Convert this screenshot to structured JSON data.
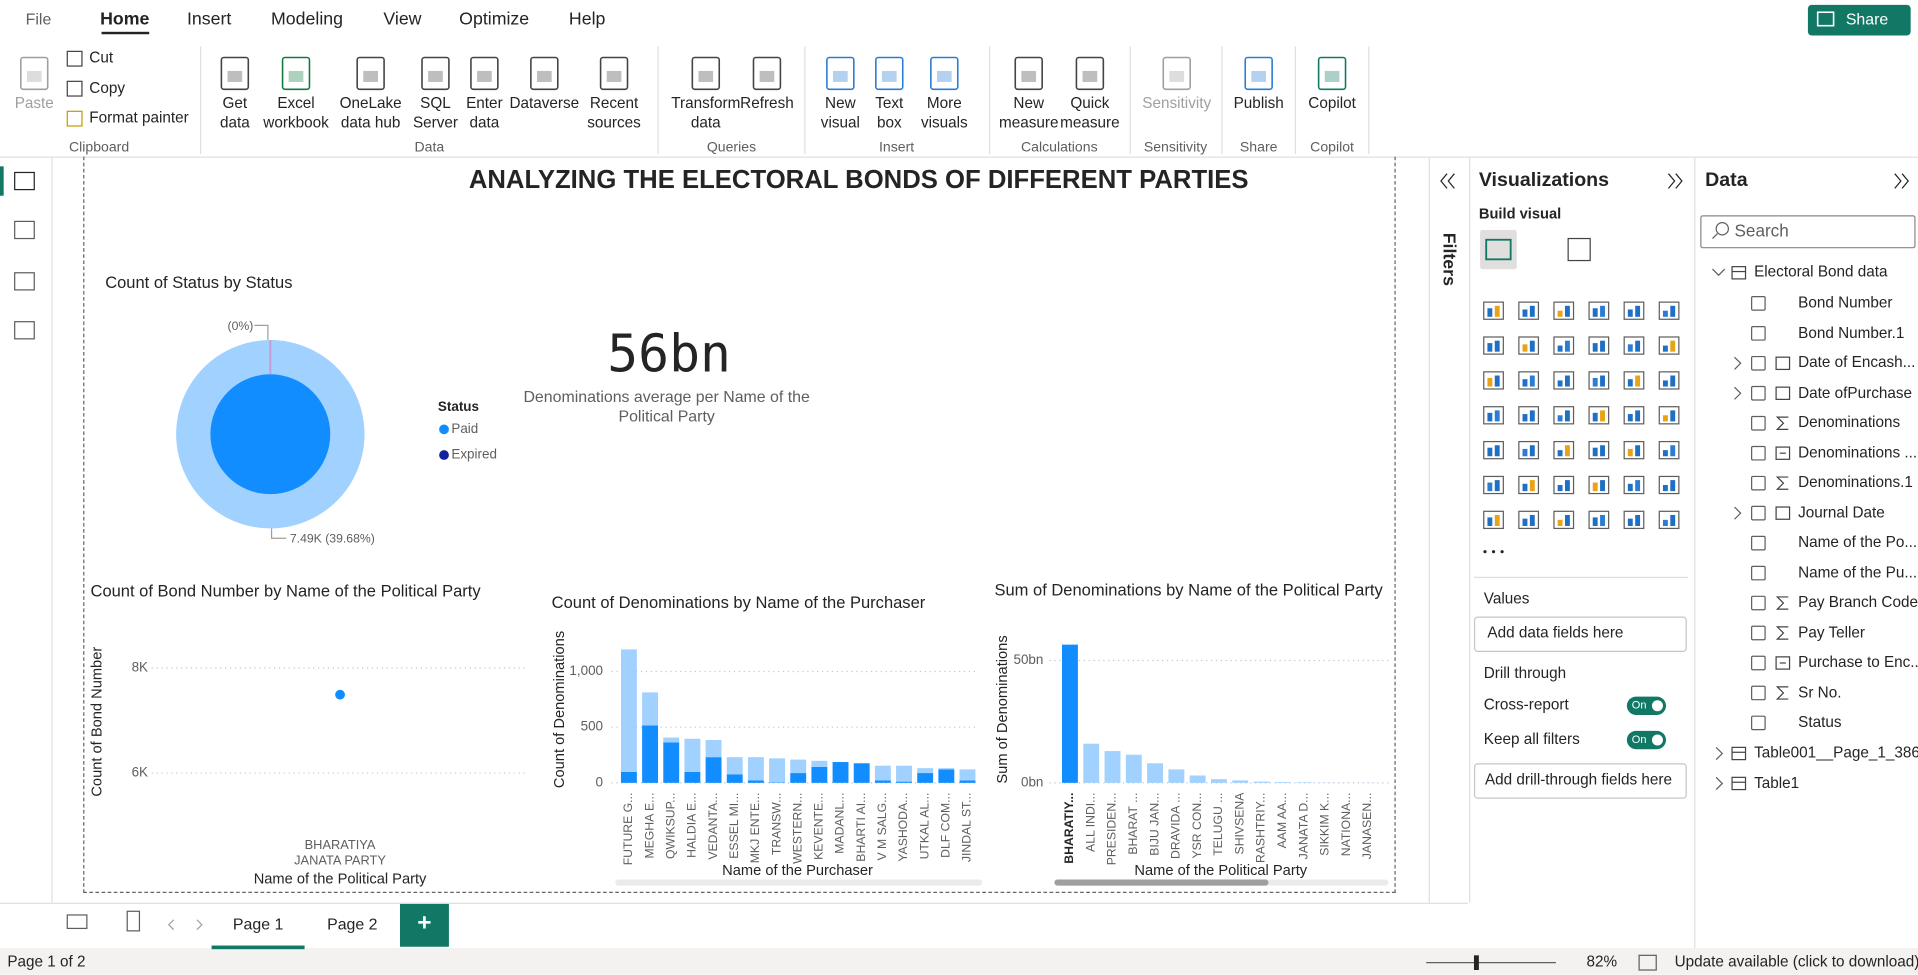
{
  "menu": {
    "file": "File",
    "tabs": [
      "Home",
      "Insert",
      "Modeling",
      "View",
      "Optimize",
      "Help"
    ],
    "share": "Share"
  },
  "ribbon": {
    "groups": [
      {
        "label": "Clipboard",
        "buttons": [
          {
            "lines": [
              "Paste"
            ]
          }
        ],
        "small": [
          "Cut",
          "Copy",
          "Format painter"
        ]
      },
      {
        "label": "Data",
        "buttons": [
          {
            "lines": [
              "Get",
              "data"
            ]
          },
          {
            "lines": [
              "Excel",
              "workbook"
            ]
          },
          {
            "lines": [
              "OneLake",
              "data hub"
            ]
          },
          {
            "lines": [
              "SQL",
              "Server"
            ]
          },
          {
            "lines": [
              "Enter",
              "data"
            ]
          },
          {
            "lines": [
              "Dataverse"
            ]
          },
          {
            "lines": [
              "Recent",
              "sources"
            ]
          }
        ]
      },
      {
        "label": "Queries",
        "buttons": [
          {
            "lines": [
              "Transform",
              "data"
            ]
          },
          {
            "lines": [
              "Refresh"
            ]
          }
        ]
      },
      {
        "label": "Insert",
        "buttons": [
          {
            "lines": [
              "New",
              "visual"
            ]
          },
          {
            "lines": [
              "Text",
              "box"
            ]
          },
          {
            "lines": [
              "More",
              "visuals"
            ]
          }
        ]
      },
      {
        "label": "Calculations",
        "buttons": [
          {
            "lines": [
              "New",
              "measure"
            ]
          },
          {
            "lines": [
              "Quick",
              "measure"
            ]
          }
        ]
      },
      {
        "label": "Sensitivity",
        "buttons": [
          {
            "lines": [
              "Sensitivity"
            ]
          }
        ]
      },
      {
        "label": "Share",
        "buttons": [
          {
            "lines": [
              "Publish"
            ]
          }
        ]
      },
      {
        "label": "Copilot",
        "buttons": [
          {
            "lines": [
              "Copilot"
            ]
          }
        ]
      }
    ]
  },
  "report": {
    "title": "ANALYZING THE ELECTORAL BONDS OF DIFFERENT PARTIES",
    "donut": {
      "title": "Count of Status by Status",
      "legend_title": "Status",
      "legend": [
        {
          "name": "Paid",
          "color": "#118DFF"
        },
        {
          "name": "Expired",
          "color": "#12239E"
        }
      ],
      "labels": [
        "(0%)",
        "7.49K (39.68%)"
      ]
    },
    "card": {
      "value": "56bn",
      "caption": "Denominations average per Name of the Political Party"
    },
    "scatter": {
      "type": "scatter",
      "title": "Count of Bond Number by Name of the Political Party",
      "y_label": "Count of Bond Number",
      "x_label": "Name of the Political Party",
      "categories": [
        "BHARATIYA JANATA PARTY"
      ],
      "values": [
        7490
      ],
      "color": "#118DFF",
      "ylim": [
        5600,
        8600
      ],
      "yticks": [
        {
          "value": 6000,
          "label": "6K"
        },
        {
          "value": 8000,
          "label": "8K"
        }
      ]
    },
    "purchasers": {
      "type": "bar",
      "title": "Count of Denominations by Name of the Purchaser",
      "y_label": "Count of Denominations",
      "x_label": "Name of the Purchaser",
      "categories": [
        "FUTURE G...",
        "MEGHA E...",
        "QWIKSUP...",
        "HALDIA E...",
        "VEDANTA...",
        "ESSEL MI...",
        "MKJ ENTE...",
        "TRANSW...",
        "WESTERN...",
        "KEVENTE...",
        "MADANL...",
        "BHARTI AI...",
        "V M SALG...",
        "YASHODA...",
        "UTKAL AL...",
        "DLF COM...",
        "JINDAL ST..."
      ],
      "series": [
        {
          "color": "#118DFF",
          "values": [
            99,
            516,
            363,
            99,
            231,
            77,
            22,
            5,
            88,
            143,
            187,
            176,
            22,
            11,
            88,
            121,
            22
          ]
        },
        {
          "color": "#A0D1FF",
          "values": [
            1100,
            297,
            44,
            297,
            154,
            154,
            209,
            215,
            121,
            55,
            0,
            0,
            132,
            143,
            44,
            11,
            99
          ]
        }
      ],
      "ylim": [
        0,
        1300
      ],
      "yticks": [
        0,
        500,
        {
          "value": 1000,
          "label": "1,000"
        }
      ]
    },
    "parties": {
      "type": "bar",
      "title": "Sum of Denominations by Name of the Political Party",
      "y_label": "Sum of Denominations",
      "x_label": "Name of the Political Party",
      "categories": [
        "BHARATIY...",
        "ALL INDI...",
        "PRESIDEN...",
        "BHARAT ...",
        "BIJU JAN...",
        "DRAVIDA ...",
        "YSR CON...",
        "TELUGU ...",
        "SHIVSENA",
        "RASHTRIY...",
        "AAM AA...",
        "JANATA D...",
        "SIKKIM K...",
        "NATIONA...",
        "JANASEN..."
      ],
      "values": [
        56.5,
        16,
        13,
        11.5,
        8,
        5.5,
        3,
        1.5,
        1,
        0.5,
        0.3,
        0.2,
        0.1,
        0.05,
        0.05
      ],
      "colors": [
        "#118DFF",
        "#A0D1FF",
        "#A0D1FF",
        "#A0D1FF",
        "#A0D1FF",
        "#A0D1FF",
        "#A0D1FF",
        "#A0D1FF",
        "#A0D1FF",
        "#A0D1FF",
        "#A0D1FF",
        "#A0D1FF",
        "#A0D1FF",
        "#A0D1FF",
        "#A0D1FF"
      ],
      "ylim": [
        0,
        60
      ],
      "yticks": [
        {
          "value": 0,
          "label": "0bn"
        },
        {
          "value": 50,
          "label": "50bn"
        }
      ]
    }
  },
  "filters": {
    "title": "Filters"
  },
  "visualizations": {
    "title": "Visualizations",
    "build": "Build visual",
    "values": "Values",
    "values_drop": "Add data fields here",
    "drill": "Drill through",
    "cross_report": "Cross-report",
    "keep_filters": "Keep all filters",
    "toggle": "On",
    "drill_drop": "Add drill-through fields here"
  },
  "data_pane": {
    "title": "Data",
    "search": "Search",
    "table": "Electoral Bond data",
    "fields": [
      "Bond Number",
      "Bond Number.1",
      "Date of Encash...",
      "Date ofPurchase",
      "Denominations",
      "Denominations ...",
      "Denominations.1",
      "Journal Date",
      "Name of the Po...",
      "Name of the Pu...",
      "Pay Branch Code",
      "Pay Teller",
      "Purchase to Enc...",
      "Sr No.",
      "Status"
    ],
    "other_tables": [
      "Table001__Page_1_386",
      "Table1"
    ]
  },
  "pages": {
    "tabs": [
      "Page 1",
      "Page 2"
    ],
    "add": "+"
  },
  "status": {
    "page": "Page 1 of 2",
    "zoom": "82%",
    "update": "Update available (click to download)"
  }
}
